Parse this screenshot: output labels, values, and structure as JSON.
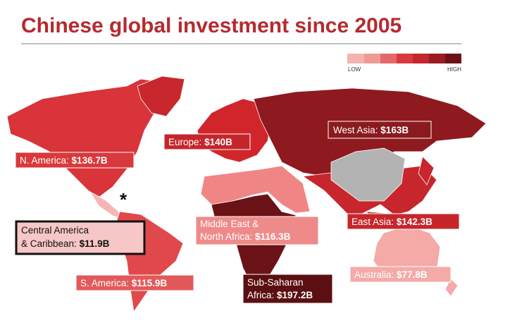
{
  "title": "Chinese global investment since 2005",
  "legend": {
    "low": "LOW",
    "high": "HIGH"
  },
  "regions": [
    {
      "lines": [
        "N. America:"
      ],
      "value": "$136.7B"
    },
    {
      "lines": [
        "Europe:"
      ],
      "value": "$140B"
    },
    {
      "lines": [
        "West Asia:"
      ],
      "value": "$163B"
    },
    {
      "lines": [
        "Central America",
        "& Caribbean:"
      ],
      "value": "$11.9B"
    },
    {
      "lines": [
        "Middle East &",
        "North Africa:"
      ],
      "value": "$116.3B"
    },
    {
      "lines": [
        "East Asia:"
      ],
      "value": "$142.3B"
    },
    {
      "lines": [
        "S. America:"
      ],
      "value": "$115.9B"
    },
    {
      "lines": [
        "Sub-Saharan",
        "Africa:"
      ],
      "value": "$197.2B"
    },
    {
      "lines": [
        "Australia:"
      ],
      "value": "$77.8B"
    }
  ],
  "annotations": {
    "asterisk": "*"
  }
}
